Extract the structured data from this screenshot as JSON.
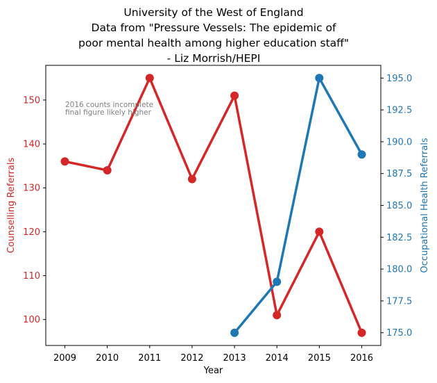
{
  "chart_data": {
    "type": "line",
    "title_lines": [
      "University of the West of England",
      "Data from \"Pressure Vessels: The epidemic of",
      "poor mental health among higher education staff\"",
      "- Liz Morrish/HEPI"
    ],
    "xlabel": "Year",
    "ylabel_left": "Counselling Referrals",
    "ylabel_right": "Occupational Health Referrals",
    "x_ticks": [
      "2009",
      "2010",
      "2011",
      "2012",
      "2013",
      "2014",
      "2015",
      "2016"
    ],
    "xlim": [
      2008.55,
      2016.45
    ],
    "ylim_left": [
      94.1,
      157.9
    ],
    "ylim_right": [
      174.0,
      196.0
    ],
    "y_ticks_left": [
      "100",
      "110",
      "120",
      "130",
      "140",
      "150"
    ],
    "y_ticks_right": [
      "175.0",
      "177.5",
      "180.0",
      "182.5",
      "185.0",
      "187.5",
      "190.0",
      "192.5",
      "195.0"
    ],
    "annotation_lines": [
      "2016 counts incomplete",
      "final figure likely higher"
    ],
    "grid": false,
    "series": [
      {
        "name": "Counselling Referrals",
        "axis": "left",
        "color": "#d62728",
        "x": [
          2009,
          2010,
          2011,
          2012,
          2013,
          2014,
          2015,
          2016
        ],
        "values": [
          136,
          134,
          155,
          132,
          151,
          101,
          120,
          97
        ]
      },
      {
        "name": "Occupational Health Referrals",
        "axis": "right",
        "color": "#1f77b4",
        "x": [
          2013,
          2014,
          2015,
          2016
        ],
        "values": [
          175,
          179,
          195,
          189
        ]
      }
    ]
  }
}
